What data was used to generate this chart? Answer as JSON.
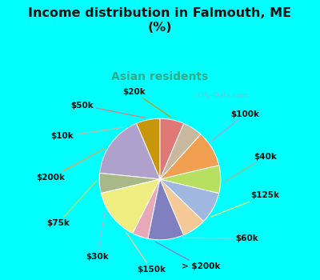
{
  "title": "Income distribution in Falmouth, ME\n(%)",
  "subtitle": "Asian residents",
  "title_color": "#111111",
  "subtitle_color": "#33aa88",
  "background_color": "#00ffff",
  "chart_bg_left": "#d8eedf",
  "chart_bg_right": "#ffffff",
  "labels": [
    "$20k",
    "$100k",
    "$40k",
    "$125k",
    "$60k",
    "> $200k",
    "$150k",
    "$30k",
    "$75k",
    "$200k",
    "$10k",
    "$50k"
  ],
  "values": [
    6,
    16,
    5,
    13,
    4,
    9,
    6,
    8,
    7,
    9,
    5,
    6
  ],
  "colors": [
    "#c8960a",
    "#b0a0cc",
    "#a8b888",
    "#f0ee80",
    "#e8a8b8",
    "#8080c0",
    "#f5c898",
    "#a0b8e0",
    "#b8e060",
    "#f0a050",
    "#c8b8a0",
    "#e07878"
  ],
  "watermark": "City-Data.com"
}
